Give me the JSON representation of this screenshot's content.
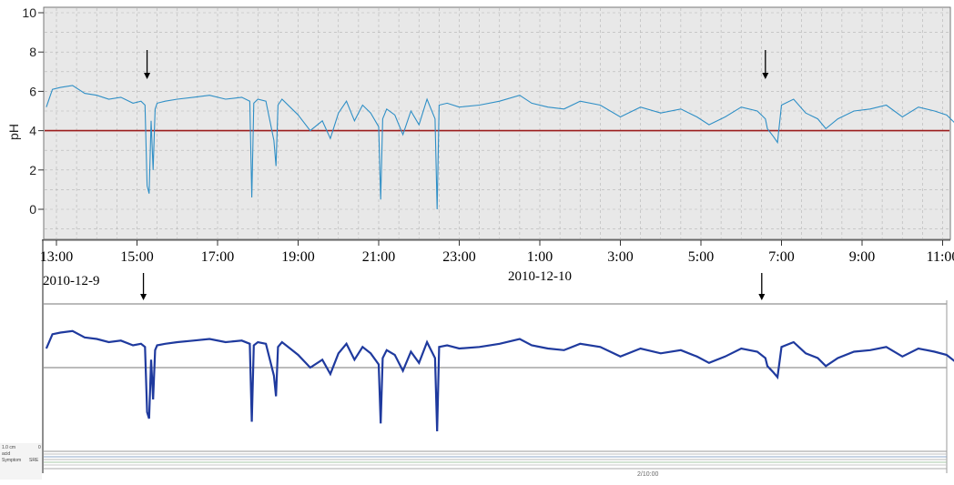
{
  "chart_data": [
    {
      "type": "line",
      "title": "",
      "xlabel": "",
      "ylabel": "pH",
      "ylim": [
        -1.5,
        10.2
      ],
      "y_ticks": [
        "10",
        "8",
        "6",
        "4",
        "2",
        "0"
      ],
      "x_ticks": [
        "13:00",
        "15:00",
        "17:00",
        "19:00",
        "21:00",
        "23:00",
        "1:00",
        "3:00",
        "5:00",
        "7:00",
        "9:00",
        "11:00"
      ],
      "date_labels": [
        "2010-12-9",
        "2010-12-10"
      ],
      "grid": true,
      "threshold": 4,
      "colors": {
        "series": "#2f8fc6",
        "threshold": "#9b1b1b",
        "background": "#e8e8e8",
        "grid": "#b4b4b4"
      },
      "arrow_times_hours": [
        15.25,
        6.6
      ],
      "series": [
        {
          "x_hours": [
            12.75,
            12.9,
            13.1,
            13.4,
            13.7,
            14.0,
            14.3,
            14.6,
            14.9,
            15.1,
            15.2,
            15.25,
            15.3,
            15.35,
            15.4,
            15.45,
            15.5,
            15.7,
            16.0,
            16.4,
            16.8,
            17.2,
            17.6,
            17.8,
            17.85,
            17.9,
            18.0,
            18.2,
            18.4,
            18.45,
            18.5,
            18.6,
            18.8,
            19.0,
            19.3,
            19.6,
            19.8,
            20.0,
            20.2,
            20.4,
            20.6,
            20.8,
            21.0,
            21.05,
            21.1,
            21.2,
            21.4,
            21.6,
            21.8,
            22.0,
            22.2,
            22.4,
            22.45,
            22.5,
            22.7,
            23.0,
            23.5,
            24.0,
            24.5,
            24.8,
            25.2,
            25.6,
            26.0,
            26.5,
            27.0,
            27.5,
            28.0,
            28.5,
            28.9,
            29.2,
            29.6,
            30.0,
            30.4,
            30.6,
            30.65,
            30.8,
            30.9,
            31.0,
            31.3,
            31.6,
            31.9,
            32.1,
            32.4,
            32.8,
            33.2,
            33.6,
            34.0,
            34.4,
            34.8,
            35.1,
            35.3
          ],
          "y": [
            5.2,
            6.1,
            6.2,
            6.3,
            5.9,
            5.8,
            5.6,
            5.7,
            5.4,
            5.5,
            5.3,
            1.2,
            0.8,
            4.5,
            2.0,
            5.1,
            5.4,
            5.5,
            5.6,
            5.7,
            5.8,
            5.6,
            5.7,
            5.5,
            0.6,
            5.4,
            5.6,
            5.5,
            3.5,
            2.2,
            5.3,
            5.6,
            5.2,
            4.8,
            4.0,
            4.5,
            3.6,
            4.9,
            5.5,
            4.5,
            5.3,
            4.9,
            4.2,
            0.5,
            4.6,
            5.1,
            4.8,
            3.8,
            5.0,
            4.3,
            5.6,
            4.6,
            0.0,
            5.3,
            5.4,
            5.2,
            5.3,
            5.5,
            5.8,
            5.4,
            5.2,
            5.1,
            5.5,
            5.3,
            4.7,
            5.2,
            4.9,
            5.1,
            4.7,
            4.3,
            4.7,
            5.2,
            5.0,
            4.6,
            4.1,
            3.7,
            3.4,
            5.3,
            5.6,
            4.9,
            4.6,
            4.1,
            4.6,
            5.0,
            5.1,
            5.3,
            4.7,
            5.2,
            5.0,
            4.8,
            4.4
          ]
        }
      ]
    },
    {
      "type": "line",
      "title": "",
      "xlabel": "",
      "ylabel": "",
      "ylim": [
        -1.5,
        10.2
      ],
      "grid": false,
      "reference_lines": [
        8,
        4
      ],
      "colors": {
        "series": "#1f3a9e",
        "background": "#ffffff",
        "reference": "#777777"
      },
      "arrow_times_hours": [
        15.25,
        6.6
      ],
      "series": [
        {
          "x_hours": [
            12.75,
            12.9,
            13.1,
            13.4,
            13.7,
            14.0,
            14.3,
            14.6,
            14.9,
            15.1,
            15.2,
            15.25,
            15.3,
            15.35,
            15.4,
            15.45,
            15.5,
            15.7,
            16.0,
            16.4,
            16.8,
            17.2,
            17.6,
            17.8,
            17.85,
            17.9,
            18.0,
            18.2,
            18.4,
            18.45,
            18.5,
            18.6,
            18.8,
            19.0,
            19.3,
            19.6,
            19.8,
            20.0,
            20.2,
            20.4,
            20.6,
            20.8,
            21.0,
            21.05,
            21.1,
            21.2,
            21.4,
            21.6,
            21.8,
            22.0,
            22.2,
            22.4,
            22.45,
            22.5,
            22.7,
            23.0,
            23.5,
            24.0,
            24.5,
            24.8,
            25.2,
            25.6,
            26.0,
            26.5,
            27.0,
            27.5,
            28.0,
            28.5,
            28.9,
            29.2,
            29.6,
            30.0,
            30.4,
            30.6,
            30.65,
            30.8,
            30.9,
            31.0,
            31.3,
            31.6,
            31.9,
            32.1,
            32.4,
            32.8,
            33.2,
            33.6,
            34.0,
            34.4,
            34.8,
            35.1,
            35.3
          ],
          "y": [
            5.2,
            6.1,
            6.2,
            6.3,
            5.9,
            5.8,
            5.6,
            5.7,
            5.4,
            5.5,
            5.3,
            1.2,
            0.8,
            4.5,
            2.0,
            5.1,
            5.4,
            5.5,
            5.6,
            5.7,
            5.8,
            5.6,
            5.7,
            5.5,
            0.6,
            5.4,
            5.6,
            5.5,
            3.5,
            2.2,
            5.3,
            5.6,
            5.2,
            4.8,
            4.0,
            4.5,
            3.6,
            4.9,
            5.5,
            4.5,
            5.3,
            4.9,
            4.2,
            0.5,
            4.6,
            5.1,
            4.8,
            3.8,
            5.0,
            4.3,
            5.6,
            4.6,
            0.0,
            5.3,
            5.4,
            5.2,
            5.3,
            5.5,
            5.8,
            5.4,
            5.2,
            5.1,
            5.5,
            5.3,
            4.7,
            5.2,
            4.9,
            5.1,
            4.7,
            4.3,
            4.7,
            5.2,
            5.0,
            4.6,
            4.1,
            3.7,
            3.4,
            5.3,
            5.6,
            4.9,
            4.6,
            4.1,
            4.6,
            5.0,
            5.1,
            5.3,
            4.7,
            5.2,
            5.0,
            4.8,
            4.4
          ]
        }
      ],
      "footer_labels": [
        "1.0 cm",
        "0",
        "acid",
        "Symptom",
        "SRE",
        "2/10:00"
      ]
    }
  ]
}
